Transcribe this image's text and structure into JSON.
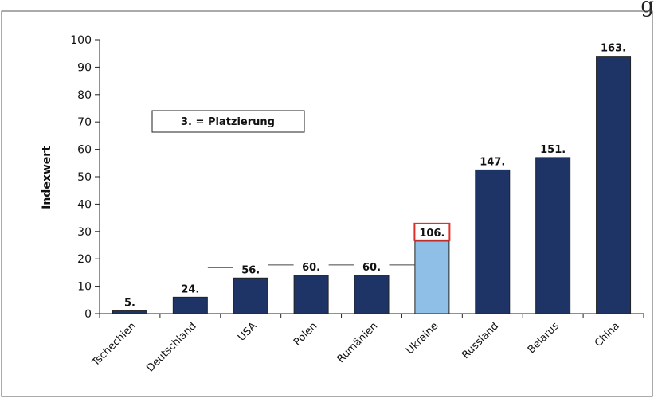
{
  "chart_data": {
    "type": "bar",
    "ylabel": "Indexwert",
    "ylim": [
      0,
      100
    ],
    "yticks": [
      0,
      10,
      20,
      30,
      40,
      50,
      60,
      70,
      80,
      90,
      100
    ],
    "categories": [
      "Tschechien",
      "Deutschland",
      "USA",
      "Polen",
      "Rumänien",
      "Ukraine",
      "Russland",
      "Belarus",
      "China"
    ],
    "values": [
      1,
      6,
      13,
      14,
      14,
      26.5,
      52.5,
      57,
      94
    ],
    "data_labels": [
      "5.",
      "24.",
      "56.",
      "60.",
      "60.",
      "106.",
      "147.",
      "151.",
      "163."
    ],
    "highlighted_category": "Ukraine",
    "colors": {
      "bar": "#1f3466",
      "highlight": "#8fbfe6",
      "highlight_label_border": "#e0302a"
    },
    "annotation": "3. = Platzierung",
    "grid": false
  },
  "corner_fragment": "g"
}
